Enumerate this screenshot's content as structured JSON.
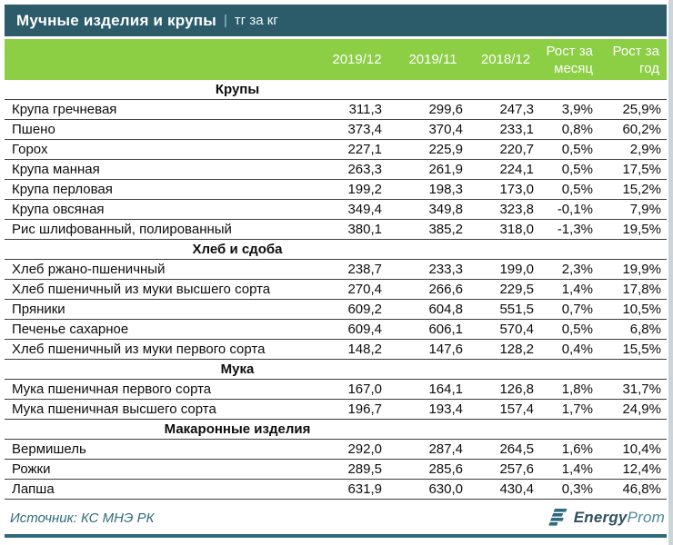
{
  "header": {
    "title": "Мучные изделия и крупы",
    "separator": "|",
    "unit": "тг за кг"
  },
  "chart_data": {
    "type": "table",
    "title": "Мучные изделия и крупы | тг за кг",
    "columns": [
      "2019/12",
      "2019/11",
      "2018/12",
      "Рост за месяц",
      "Рост за год"
    ],
    "sections": [
      {
        "title": "Крупы",
        "rows": [
          {
            "name": "Крупа гречневая",
            "values": [
              "311,3",
              "299,6",
              "247,3",
              "3,9%",
              "25,9%"
            ]
          },
          {
            "name": "Пшено",
            "values": [
              "373,4",
              "370,4",
              "233,1",
              "0,8%",
              "60,2%"
            ]
          },
          {
            "name": "Горох",
            "values": [
              "227,1",
              "225,9",
              "220,7",
              "0,5%",
              "2,9%"
            ]
          },
          {
            "name": "Крупа манная",
            "values": [
              "263,3",
              "261,9",
              "224,1",
              "0,5%",
              "17,5%"
            ]
          },
          {
            "name": "Крупа перловая",
            "values": [
              "199,2",
              "198,3",
              "173,0",
              "0,5%",
              "15,2%"
            ]
          },
          {
            "name": "Крупа овсяная",
            "values": [
              "349,4",
              "349,8",
              "323,8",
              "-0,1%",
              "7,9%"
            ]
          },
          {
            "name": "Рис шлифованный, полированный",
            "values": [
              "380,1",
              "385,2",
              "318,0",
              "-1,3%",
              "19,5%"
            ]
          }
        ]
      },
      {
        "title": "Хлеб и сдоба",
        "rows": [
          {
            "name": "Хлеб ржано-пшеничный",
            "values": [
              "238,7",
              "233,3",
              "199,0",
              "2,3%",
              "19,9%"
            ]
          },
          {
            "name": "Хлеб пшеничный из муки высшего сорта",
            "values": [
              "270,4",
              "266,6",
              "229,5",
              "1,4%",
              "17,8%"
            ]
          },
          {
            "name": "Пряники",
            "values": [
              "609,2",
              "604,8",
              "551,5",
              "0,7%",
              "10,5%"
            ]
          },
          {
            "name": "Печенье сахарное",
            "values": [
              "609,4",
              "606,1",
              "570,4",
              "0,5%",
              "6,8%"
            ]
          },
          {
            "name": "Хлеб пшеничный из муки первого сорта",
            "values": [
              "148,2",
              "147,6",
              "128,2",
              "0,4%",
              "15,5%"
            ]
          }
        ]
      },
      {
        "title": "Мука",
        "rows": [
          {
            "name": "Мука пшеничная первого сорта",
            "values": [
              "167,0",
              "164,1",
              "126,8",
              "1,8%",
              "31,7%"
            ]
          },
          {
            "name": "Мука пшеничная высшего сорта",
            "values": [
              "196,7",
              "193,4",
              "157,4",
              "1,7%",
              "24,9%"
            ]
          }
        ]
      },
      {
        "title": "Макаронные изделия",
        "rows": [
          {
            "name": "Вермишель",
            "values": [
              "292,0",
              "287,4",
              "264,5",
              "1,6%",
              "10,4%"
            ]
          },
          {
            "name": "Рожки",
            "values": [
              "289,5",
              "285,6",
              "257,6",
              "1,4%",
              "12,4%"
            ]
          },
          {
            "name": "Лапша",
            "values": [
              "631,9",
              "630,0",
              "430,4",
              "0,3%",
              "46,8%"
            ]
          }
        ]
      }
    ]
  },
  "footer": {
    "source": "Источник: КС МНЭ РК",
    "logo_bold": "Energy",
    "logo_light": "Prom"
  },
  "colors": {
    "teal_dark": "#2C5C6A",
    "green": "#8CCE44",
    "line": "#3C3C3C",
    "teal_accent": "#2E6B7C",
    "logo_dark": "#31505E",
    "logo_light": "#4E879B",
    "edge_gray": "#CDD5D9"
  }
}
